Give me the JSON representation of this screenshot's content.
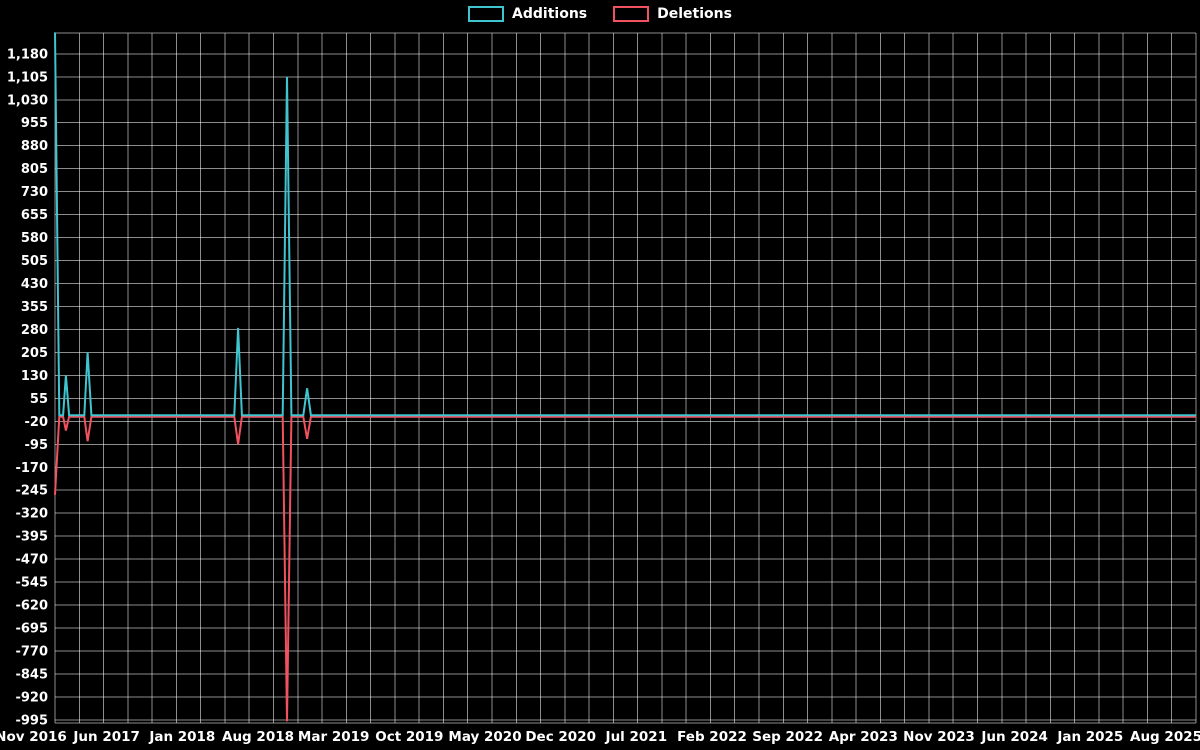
{
  "legend": {
    "items": [
      {
        "label": "Additions",
        "color": "#40c4d0"
      },
      {
        "label": "Deletions",
        "color": "#f2525f"
      }
    ]
  },
  "chart_data": {
    "type": "line",
    "title": "",
    "background": "#000000",
    "text_color": "#ffffff",
    "grid": {
      "color": "rgba(255,255,255,0.55)",
      "vertical_lines": 48,
      "grid_on": true
    },
    "y_axis": {
      "tick_step": 75,
      "ticks": [
        1180,
        1105,
        1030,
        955,
        880,
        805,
        730,
        655,
        580,
        505,
        430,
        355,
        280,
        205,
        130,
        55,
        -20,
        -95,
        -170,
        -245,
        -320,
        -395,
        -470,
        -545,
        -620,
        -695,
        -770,
        -845,
        -920,
        -995
      ],
      "tick_labels": [
        "1,180",
        "1,105",
        "1,030",
        "955",
        "880",
        "805",
        "730",
        "655",
        "580",
        "505",
        "430",
        "355",
        "280",
        "205",
        "130",
        "55",
        "-20",
        "-95",
        "-170",
        "-245",
        "-320",
        "-395",
        "-470",
        "-545",
        "-620",
        "-695",
        "-770",
        "-845",
        "-920",
        "-995"
      ],
      "plot_max": 1248,
      "plot_min": -1005
    },
    "x_axis": {
      "tick_labels": [
        "Nov 2016",
        "Jun 2017",
        "Jan 2018",
        "Aug 2018",
        "Mar 2019",
        "Oct 2019",
        "May 2020",
        "Dec 2020",
        "Jul 2021",
        "Feb 2022",
        "Sep 2022",
        "Apr 2023",
        "Nov 2023",
        "Jun 2024",
        "Jan 2025",
        "Aug 2025"
      ],
      "months_per_tick": 7,
      "months_span": 105,
      "x_unit": "months since Nov 2016"
    },
    "series": [
      {
        "name": "Deletions",
        "color": "#f2525f",
        "points": [
          [
            0,
            -255
          ],
          [
            0.4,
            0
          ],
          [
            0.75,
            0
          ],
          [
            1,
            -45
          ],
          [
            1.3,
            0
          ],
          [
            2.7,
            0
          ],
          [
            3,
            -80
          ],
          [
            3.35,
            0
          ],
          [
            16.5,
            0
          ],
          [
            16.85,
            -90
          ],
          [
            17.2,
            0
          ],
          [
            20.95,
            0
          ],
          [
            21.35,
            -995
          ],
          [
            21.75,
            0
          ],
          [
            22.85,
            0
          ],
          [
            23.2,
            -72
          ],
          [
            23.55,
            0
          ],
          [
            105,
            0
          ]
        ]
      },
      {
        "name": "Additions",
        "color": "#40c4d0",
        "points": [
          [
            0,
            1250
          ],
          [
            0.4,
            0
          ],
          [
            0.75,
            0
          ],
          [
            1,
            130
          ],
          [
            1.3,
            0
          ],
          [
            2.7,
            0
          ],
          [
            3,
            205
          ],
          [
            3.35,
            0
          ],
          [
            16.5,
            0
          ],
          [
            16.85,
            285
          ],
          [
            17.2,
            0
          ],
          [
            20.95,
            0
          ],
          [
            21.35,
            1105
          ],
          [
            21.75,
            0
          ],
          [
            22.85,
            0
          ],
          [
            23.2,
            88
          ],
          [
            23.55,
            0
          ],
          [
            105,
            0
          ]
        ]
      }
    ]
  }
}
